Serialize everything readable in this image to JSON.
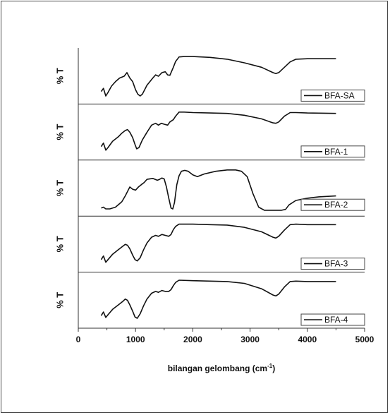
{
  "chart_data": {
    "type": "line",
    "xlabel": "bilangan gelombang (cm",
    "xlabel_sup": "-1",
    "xlabel_tail": ")",
    "ylabel": "% T",
    "xlim": [
      0,
      5000
    ],
    "ylim": [
      0,
      100
    ],
    "x_ticks": [
      "0",
      "1000",
      "2000",
      "3000",
      "4000",
      "5000"
    ],
    "x_tick_values": [
      0,
      1000,
      2000,
      3000,
      4000,
      5000
    ],
    "grid": false,
    "legend_position": "right",
    "series": [
      {
        "name": "BFA-SA",
        "points": [
          [
            400,
            18
          ],
          [
            440,
            25
          ],
          [
            480,
            8
          ],
          [
            520,
            16
          ],
          [
            580,
            30
          ],
          [
            650,
            40
          ],
          [
            720,
            48
          ],
          [
            800,
            52
          ],
          [
            850,
            60
          ],
          [
            900,
            48
          ],
          [
            950,
            40
          ],
          [
            1000,
            22
          ],
          [
            1040,
            12
          ],
          [
            1080,
            8
          ],
          [
            1120,
            12
          ],
          [
            1200,
            32
          ],
          [
            1300,
            48
          ],
          [
            1350,
            55
          ],
          [
            1400,
            52
          ],
          [
            1460,
            60
          ],
          [
            1520,
            62
          ],
          [
            1560,
            55
          ],
          [
            1600,
            54
          ],
          [
            1660,
            72
          ],
          [
            1700,
            85
          ],
          [
            1760,
            95
          ],
          [
            1850,
            96
          ],
          [
            2000,
            96
          ],
          [
            2300,
            94
          ],
          [
            2600,
            90
          ],
          [
            2900,
            82
          ],
          [
            3200,
            72
          ],
          [
            3400,
            60
          ],
          [
            3450,
            58
          ],
          [
            3500,
            60
          ],
          [
            3600,
            72
          ],
          [
            3700,
            84
          ],
          [
            3800,
            90
          ],
          [
            4000,
            91
          ],
          [
            4500,
            91
          ]
        ]
      },
      {
        "name": "BFA-1",
        "points": [
          [
            400,
            20
          ],
          [
            440,
            28
          ],
          [
            480,
            12
          ],
          [
            520,
            18
          ],
          [
            600,
            32
          ],
          [
            700,
            42
          ],
          [
            760,
            50
          ],
          [
            820,
            56
          ],
          [
            860,
            58
          ],
          [
            900,
            52
          ],
          [
            950,
            40
          ],
          [
            990,
            25
          ],
          [
            1020,
            15
          ],
          [
            1060,
            18
          ],
          [
            1120,
            35
          ],
          [
            1200,
            52
          ],
          [
            1280,
            68
          ],
          [
            1350,
            72
          ],
          [
            1400,
            68
          ],
          [
            1450,
            72
          ],
          [
            1500,
            70
          ],
          [
            1560,
            68
          ],
          [
            1600,
            75
          ],
          [
            1660,
            80
          ],
          [
            1700,
            88
          ],
          [
            1760,
            97
          ],
          [
            1850,
            97
          ],
          [
            2000,
            96
          ],
          [
            2300,
            95
          ],
          [
            2600,
            94
          ],
          [
            2900,
            90
          ],
          [
            3200,
            82
          ],
          [
            3400,
            73
          ],
          [
            3450,
            72
          ],
          [
            3500,
            75
          ],
          [
            3600,
            88
          ],
          [
            3700,
            96
          ],
          [
            3800,
            96
          ],
          [
            4000,
            95
          ],
          [
            4500,
            94
          ]
        ]
      },
      {
        "name": "BFA-2",
        "points": [
          [
            400,
            8
          ],
          [
            440,
            10
          ],
          [
            480,
            6
          ],
          [
            550,
            6
          ],
          [
            650,
            10
          ],
          [
            760,
            22
          ],
          [
            820,
            35
          ],
          [
            860,
            45
          ],
          [
            900,
            55
          ],
          [
            950,
            50
          ],
          [
            1000,
            48
          ],
          [
            1050,
            55
          ],
          [
            1100,
            60
          ],
          [
            1150,
            65
          ],
          [
            1200,
            72
          ],
          [
            1300,
            74
          ],
          [
            1380,
            70
          ],
          [
            1420,
            72
          ],
          [
            1460,
            75
          ],
          [
            1500,
            73
          ],
          [
            1540,
            55
          ],
          [
            1580,
            30
          ],
          [
            1620,
            8
          ],
          [
            1650,
            6
          ],
          [
            1680,
            20
          ],
          [
            1720,
            60
          ],
          [
            1760,
            80
          ],
          [
            1800,
            90
          ],
          [
            1860,
            92
          ],
          [
            1920,
            90
          ],
          [
            2000,
            82
          ],
          [
            2080,
            78
          ],
          [
            2200,
            84
          ],
          [
            2400,
            90
          ],
          [
            2600,
            93
          ],
          [
            2750,
            93
          ],
          [
            2850,
            90
          ],
          [
            2950,
            78
          ],
          [
            3050,
            40
          ],
          [
            3150,
            10
          ],
          [
            3250,
            3
          ],
          [
            3400,
            3
          ],
          [
            3550,
            3
          ],
          [
            3620,
            5
          ],
          [
            3680,
            15
          ],
          [
            3800,
            25
          ],
          [
            4000,
            30
          ],
          [
            4200,
            33
          ],
          [
            4500,
            35
          ]
        ]
      },
      {
        "name": "BFA-3",
        "points": [
          [
            400,
            18
          ],
          [
            440,
            26
          ],
          [
            480,
            12
          ],
          [
            520,
            18
          ],
          [
            600,
            30
          ],
          [
            700,
            40
          ],
          [
            780,
            48
          ],
          [
            820,
            52
          ],
          [
            860,
            50
          ],
          [
            900,
            42
          ],
          [
            950,
            28
          ],
          [
            990,
            18
          ],
          [
            1030,
            15
          ],
          [
            1080,
            22
          ],
          [
            1140,
            40
          ],
          [
            1200,
            55
          ],
          [
            1280,
            68
          ],
          [
            1350,
            72
          ],
          [
            1400,
            70
          ],
          [
            1460,
            74
          ],
          [
            1520,
            72
          ],
          [
            1580,
            70
          ],
          [
            1620,
            74
          ],
          [
            1660,
            85
          ],
          [
            1700,
            92
          ],
          [
            1760,
            97
          ],
          [
            2000,
            97
          ],
          [
            2300,
            96
          ],
          [
            2600,
            95
          ],
          [
            2900,
            90
          ],
          [
            3200,
            80
          ],
          [
            3400,
            68
          ],
          [
            3450,
            66
          ],
          [
            3500,
            70
          ],
          [
            3600,
            84
          ],
          [
            3700,
            96
          ],
          [
            3800,
            97
          ],
          [
            4000,
            96
          ],
          [
            4500,
            96
          ]
        ]
      },
      {
        "name": "BFA-4",
        "points": [
          [
            400,
            18
          ],
          [
            440,
            26
          ],
          [
            480,
            14
          ],
          [
            520,
            20
          ],
          [
            600,
            32
          ],
          [
            700,
            42
          ],
          [
            780,
            50
          ],
          [
            820,
            55
          ],
          [
            860,
            52
          ],
          [
            900,
            42
          ],
          [
            950,
            28
          ],
          [
            990,
            15
          ],
          [
            1030,
            12
          ],
          [
            1080,
            22
          ],
          [
            1140,
            40
          ],
          [
            1200,
            55
          ],
          [
            1280,
            68
          ],
          [
            1350,
            72
          ],
          [
            1400,
            70
          ],
          [
            1460,
            74
          ],
          [
            1520,
            72
          ],
          [
            1580,
            72
          ],
          [
            1620,
            76
          ],
          [
            1660,
            85
          ],
          [
            1700,
            92
          ],
          [
            1760,
            97
          ],
          [
            2000,
            96
          ],
          [
            2300,
            95
          ],
          [
            2600,
            94
          ],
          [
            2900,
            90
          ],
          [
            3200,
            78
          ],
          [
            3400,
            64
          ],
          [
            3450,
            62
          ],
          [
            3500,
            66
          ],
          [
            3600,
            82
          ],
          [
            3700,
            94
          ],
          [
            3800,
            95
          ],
          [
            4000,
            94
          ],
          [
            4500,
            94
          ]
        ]
      }
    ]
  }
}
